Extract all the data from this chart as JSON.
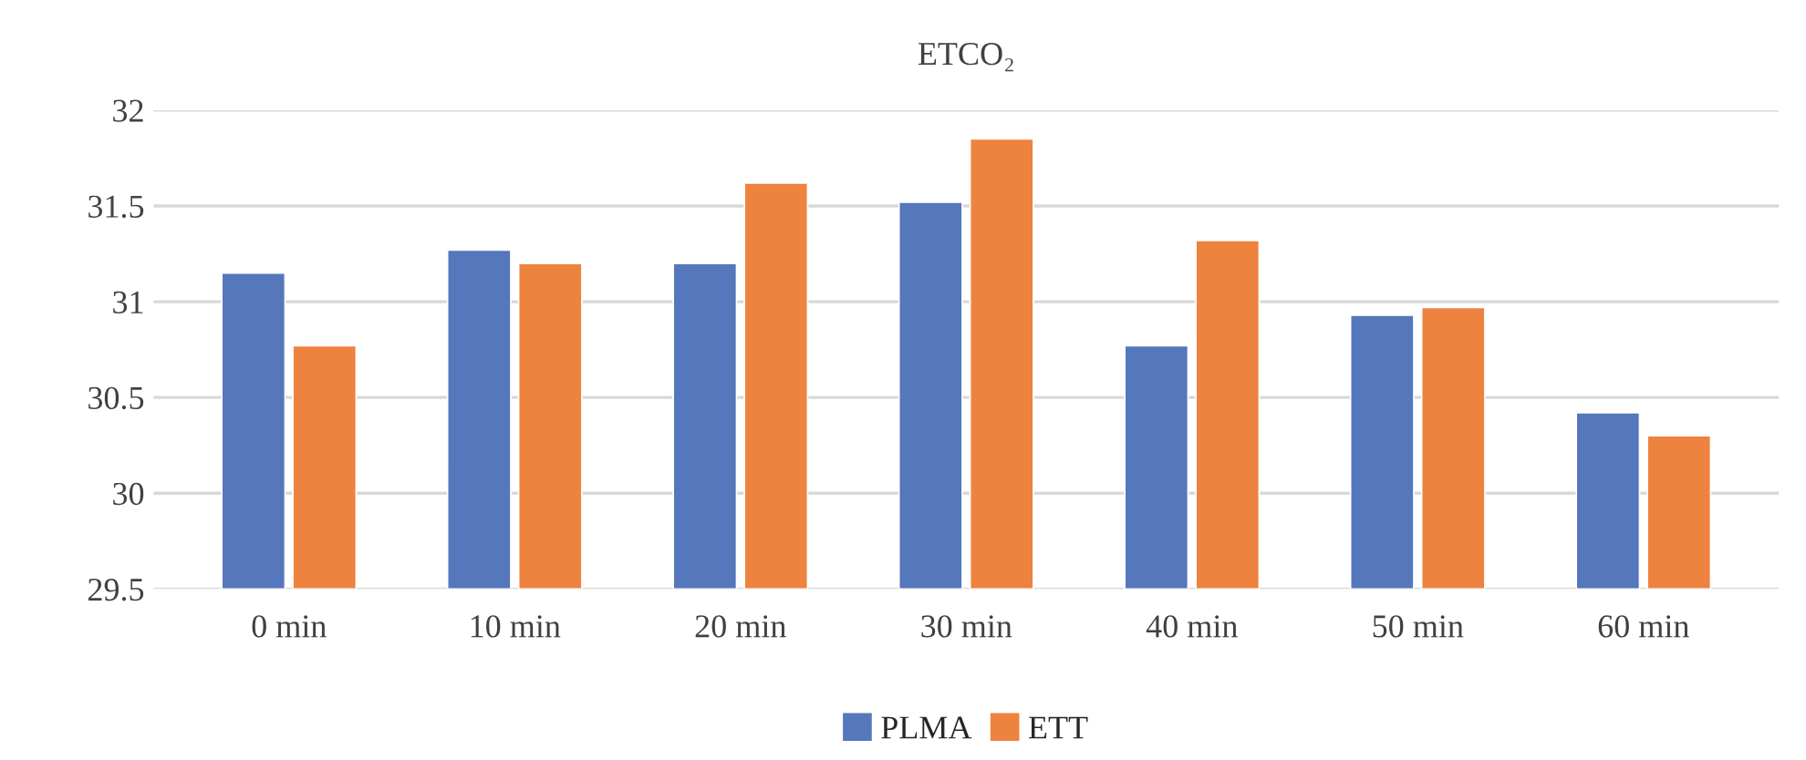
{
  "chart_data": {
    "type": "bar",
    "title": "ETCO₂",
    "categories": [
      "0 min",
      "10 min",
      "20 min",
      "30 min",
      "40 min",
      "50 min",
      "60 min"
    ],
    "series": [
      {
        "name": "PLMA",
        "color": "#5577bb",
        "values": [
          31.15,
          31.27,
          31.2,
          31.52,
          30.77,
          30.93,
          30.42
        ]
      },
      {
        "name": "ETT",
        "color": "#ed833f",
        "values": [
          30.77,
          31.2,
          31.62,
          31.85,
          31.32,
          30.97,
          30.3
        ]
      }
    ],
    "ylim": [
      29.5,
      32
    ],
    "yticks": [
      29.5,
      30,
      30.5,
      31,
      31.5,
      32
    ],
    "grid": "y",
    "legend": "bottom"
  }
}
